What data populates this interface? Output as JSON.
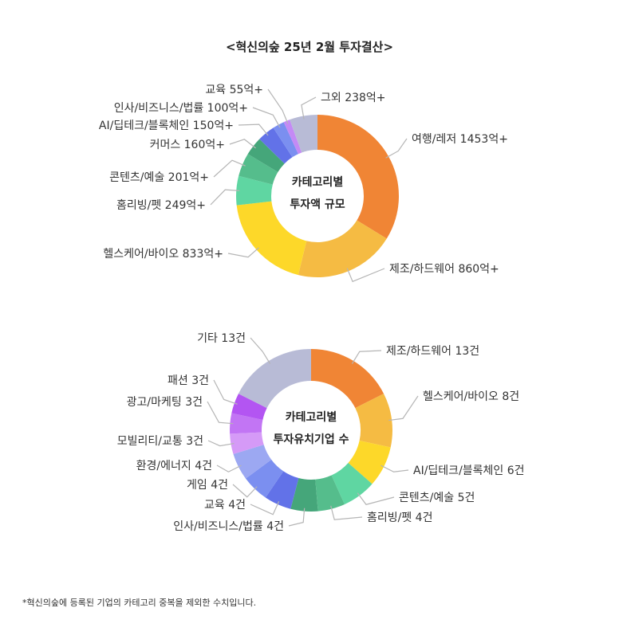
{
  "title": "<혁신의숲 25년 2월 투자결산>",
  "footnote": "*혁신의숲에 등록된 기업의 카테고리 중복을 제외한 수치입니다.",
  "chart_data": [
    {
      "type": "pie",
      "center_label": [
        "카테고리별",
        "투자액 규모"
      ],
      "unit": "억+",
      "slices": [
        {
          "label": "여행/레저",
          "value": 1453,
          "text": "여행/레저 1453억+",
          "color": "#f08535"
        },
        {
          "label": "제조/하드웨어",
          "value": 860,
          "text": "제조/하드웨어 860억+",
          "color": "#f5bb43"
        },
        {
          "label": "헬스케어/바이오",
          "value": 833,
          "text": "헬스케어/바이오 833억+",
          "color": "#fdd829"
        },
        {
          "label": "홈리빙/펫",
          "value": 249,
          "text": "홈리빙/펫 249억+",
          "color": "#5fd6a2"
        },
        {
          "label": "콘텐츠/예술",
          "value": 201,
          "text": "콘텐츠/예술 201억+",
          "color": "#55bd8c"
        },
        {
          "label": "커머스",
          "value": 160,
          "text": "커머스 160억+",
          "color": "#45a67a"
        },
        {
          "label": "AI/딥테크/블록체인",
          "value": 150,
          "text": "AI/딥테크/블록체인 150억+",
          "color": "#6272e8"
        },
        {
          "label": "인사/비즈니스/법률",
          "value": 100,
          "text": "인사/비즈니스/법률 100억+",
          "color": "#7b8ff0"
        },
        {
          "label": "교육",
          "value": 55,
          "text": "교육 55억+",
          "color": "#c48af5"
        },
        {
          "label": "그외",
          "value": 238,
          "text": "그외 238억+",
          "color": "#b8bbd6"
        }
      ]
    },
    {
      "type": "pie",
      "center_label": [
        "카테고리별",
        "투자유치기업 수"
      ],
      "unit": "건",
      "slices": [
        {
          "label": "제조/하드웨어",
          "value": 13,
          "text": "제조/하드웨어 13건",
          "color": "#f08535"
        },
        {
          "label": "헬스케어/바이오",
          "value": 8,
          "text": "헬스케어/바이오 8건",
          "color": "#f5bb43"
        },
        {
          "label": "AI/딥테크/블록체인",
          "value": 6,
          "text": "AI/딥테크/블록체인 6건",
          "color": "#fdd829"
        },
        {
          "label": "콘텐츠/예술",
          "value": 5,
          "text": "콘텐츠/예술 5건",
          "color": "#5fd6a2"
        },
        {
          "label": "홈리빙/펫",
          "value": 4,
          "text": "홈리빙/펫 4건",
          "color": "#55bd8c"
        },
        {
          "label": "인사/비즈니스/법률",
          "value": 4,
          "text": "인사/비즈니스/법률 4건",
          "color": "#45a67a"
        },
        {
          "label": "교육",
          "value": 4,
          "text": "교육 4건",
          "color": "#6272e8"
        },
        {
          "label": "게임",
          "value": 4,
          "text": "게임 4건",
          "color": "#7b8ff0"
        },
        {
          "label": "환경/에너지",
          "value": 4,
          "text": "환경/에너지 4건",
          "color": "#9ca8f2"
        },
        {
          "label": "모빌리티/교통",
          "value": 3,
          "text": "모빌리티/교통 3건",
          "color": "#d59af7"
        },
        {
          "label": "광고/마케팅",
          "value": 3,
          "text": "광고/마케팅 3건",
          "color": "#c275f4"
        },
        {
          "label": "패션",
          "value": 3,
          "text": "패션 3건",
          "color": "#b355f2"
        },
        {
          "label": "기타",
          "value": 13,
          "text": "기타 13건",
          "color": "#b8bbd6"
        }
      ]
    }
  ]
}
